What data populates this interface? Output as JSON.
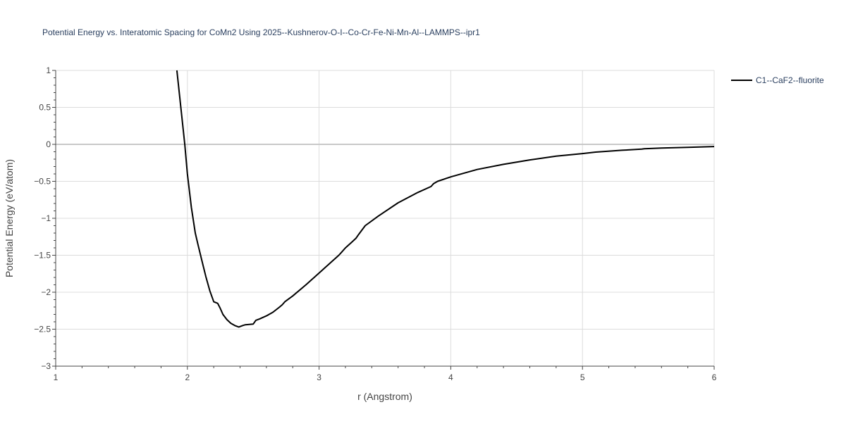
{
  "chart_data": {
    "type": "line",
    "title": "Potential Energy vs. Interatomic Spacing for CoMn2 Using 2025--Kushnerov-O-I--Co-Cr-Fe-Ni-Mn-Al--LAMMPS--ipr1",
    "xlabel": "r (Angstrom)",
    "ylabel": "Potential Energy (eV/atom)",
    "xlim": [
      1,
      6
    ],
    "ylim": [
      -3,
      1
    ],
    "x_ticks": [
      1,
      2,
      3,
      4,
      5,
      6
    ],
    "y_ticks": [
      1,
      0.5,
      0,
      -0.5,
      -1,
      -1.5,
      -2,
      -2.5,
      -3
    ],
    "x_tick_labels": [
      "1",
      "2",
      "3",
      "4",
      "5",
      "6"
    ],
    "y_tick_labels": [
      "1",
      "0.5",
      "0",
      "−0.5",
      "−1",
      "−1.5",
      "−2",
      "−2.5",
      "−3"
    ],
    "grid": true,
    "legend_position": "top-right",
    "series": [
      {
        "name": "C1--CaF2--fluorite",
        "color": "#000000",
        "x": [
          1.92,
          1.95,
          1.98,
          2.0,
          2.03,
          2.06,
          2.08,
          2.11,
          2.14,
          2.17,
          2.2,
          2.23,
          2.25,
          2.27,
          2.3,
          2.33,
          2.36,
          2.39,
          2.42,
          2.44,
          2.5,
          2.52,
          2.55,
          2.6,
          2.65,
          2.7,
          2.72,
          2.74,
          2.8,
          2.9,
          3.0,
          3.1,
          3.15,
          3.17,
          3.2,
          3.25,
          3.28,
          3.3,
          3.35,
          3.45,
          3.6,
          3.75,
          3.85,
          3.87,
          3.9,
          4.0,
          4.2,
          4.4,
          4.6,
          4.8,
          5.0,
          5.1,
          5.3,
          5.45,
          5.47,
          5.6,
          5.8,
          6.0
        ],
        "y": [
          1.0,
          0.5,
          0.0,
          -0.4,
          -0.85,
          -1.2,
          -1.35,
          -1.57,
          -1.79,
          -1.98,
          -2.13,
          -2.15,
          -2.22,
          -2.3,
          -2.37,
          -2.42,
          -2.45,
          -2.47,
          -2.45,
          -2.44,
          -2.43,
          -2.38,
          -2.36,
          -2.32,
          -2.27,
          -2.2,
          -2.17,
          -2.13,
          -2.05,
          -1.9,
          -1.74,
          -1.58,
          -1.5,
          -1.46,
          -1.4,
          -1.32,
          -1.27,
          -1.22,
          -1.1,
          -0.97,
          -0.79,
          -0.65,
          -0.57,
          -0.53,
          -0.5,
          -0.44,
          -0.34,
          -0.27,
          -0.21,
          -0.16,
          -0.125,
          -0.105,
          -0.08,
          -0.065,
          -0.06,
          -0.05,
          -0.04,
          -0.03
        ]
      }
    ]
  }
}
